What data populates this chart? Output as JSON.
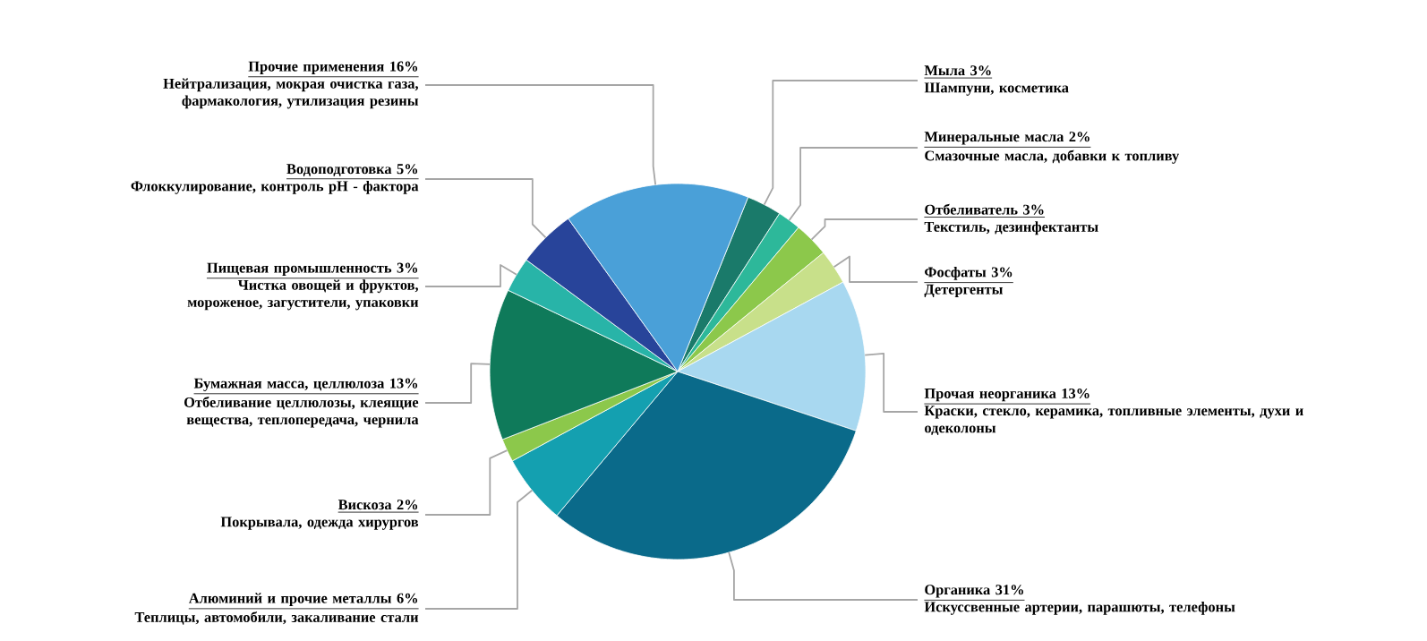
{
  "chart_data": {
    "type": "pie",
    "categories": [
      "Мыла",
      "Минеральные масла",
      "Отбеливатель",
      "Фосфаты",
      "Прочая неорганика",
      "Органика",
      "Алюминий и прочие металлы",
      "Вискоза",
      "Бумажная масса, целлюлоза",
      "Пищевая промышленность",
      "Водоподготовка",
      "Прочие применения"
    ],
    "values": [
      3,
      2,
      3,
      3,
      13,
      31,
      6,
      2,
      13,
      3,
      5,
      16
    ],
    "value_labels": [
      "3%",
      "2%",
      "3%",
      "3%",
      "13%",
      "31%",
      "6%",
      "2%",
      "13%",
      "3%",
      "5%",
      "16%"
    ],
    "colors": [
      "#1a7a6a",
      "#2db89a",
      "#8cc84b",
      "#c8e08a",
      "#a8d8f0",
      "#0a6a8a",
      "#14a0b0",
      "#8cc84b",
      "#0f7a5a",
      "#28b4a8",
      "#28449a",
      "#4aa0d8"
    ],
    "annotations": [
      "Шампуни, косметика",
      "Смазочные масла, добавки к топливу",
      "Текстиль, дезинфектанты",
      "Детергенты",
      "Краски, стекло, керамика, топливные элементы, духи и одеколоны",
      "Искуссвенные артерии, парашюты, телефоны",
      "Теплицы, автомобили, закаливание стали",
      "Покрывала, одежда хирургов",
      "Отбеливание целлюлозы, клеящие вещества, теплопередача, чернила",
      "Чистка овощей и фруктов, мороженое, загустители, упаковки",
      "Флоккулирование, контроль pH - фактора",
      "Нейтрализация, мокрая очистка газа, фармакология, утилизация резины"
    ]
  }
}
